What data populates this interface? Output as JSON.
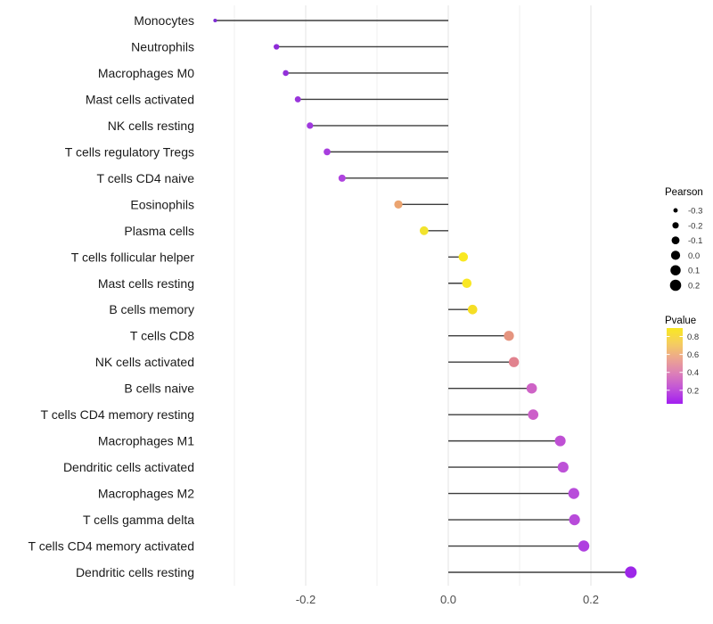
{
  "chart_data": {
    "type": "lollipop",
    "title": "",
    "xlabel": "",
    "ylabel": "",
    "x_ticks": [
      "-0.2",
      "0.0",
      "0.2"
    ],
    "x_tick_values": [
      -0.2,
      0.0,
      0.2
    ],
    "gridline_values": [
      -0.3,
      -0.2,
      -0.1,
      0.0,
      0.1,
      0.2
    ],
    "xlim": [
      -0.35,
      0.29
    ],
    "points": [
      {
        "label": "Monocytes",
        "pearson": -0.327,
        "pvalue_approx": 0.01,
        "color": "#7E2AD4"
      },
      {
        "label": "Neutrophils",
        "pearson": -0.241,
        "pvalue_approx": 0.08,
        "color": "#8E2BD8"
      },
      {
        "label": "Macrophages M0",
        "pearson": -0.228,
        "pvalue_approx": 0.1,
        "color": "#9330DA"
      },
      {
        "label": "Mast cells activated",
        "pearson": -0.211,
        "pvalue_approx": 0.12,
        "color": "#9935DB"
      },
      {
        "label": "NK cells resting",
        "pearson": -0.194,
        "pvalue_approx": 0.15,
        "color": "#A039DE"
      },
      {
        "label": "T cells regulatory  Tregs",
        "pearson": -0.17,
        "pvalue_approx": 0.18,
        "color": "#A73EDE"
      },
      {
        "label": "T cells CD4 naive",
        "pearson": -0.149,
        "pvalue_approx": 0.2,
        "color": "#AF44DF"
      },
      {
        "label": "Eosinophils",
        "pearson": -0.07,
        "pvalue_approx": 0.65,
        "color": "#EBA470"
      },
      {
        "label": "Plasma cells",
        "pearson": -0.034,
        "pvalue_approx": 0.8,
        "color": "#F2E32E"
      },
      {
        "label": "T cells follicular helper",
        "pearson": 0.021,
        "pvalue_approx": 0.85,
        "color": "#F9E821"
      },
      {
        "label": "Mast cells resting",
        "pearson": 0.026,
        "pvalue_approx": 0.85,
        "color": "#F9E724"
      },
      {
        "label": "B cells memory",
        "pearson": 0.034,
        "pvalue_approx": 0.8,
        "color": "#F5DE25"
      },
      {
        "label": "T cells CD8",
        "pearson": 0.085,
        "pvalue_approx": 0.55,
        "color": "#E5947F"
      },
      {
        "label": "NK cells activated",
        "pearson": 0.092,
        "pvalue_approx": 0.5,
        "color": "#E1828E"
      },
      {
        "label": "B cells naive",
        "pearson": 0.117,
        "pvalue_approx": 0.35,
        "color": "#CE63C6"
      },
      {
        "label": "T cells CD4 memory resting",
        "pearson": 0.119,
        "pvalue_approx": 0.35,
        "color": "#CC5FC9"
      },
      {
        "label": "Macrophages M1",
        "pearson": 0.157,
        "pvalue_approx": 0.3,
        "color": "#BF50D4"
      },
      {
        "label": "Dendritic cells activated",
        "pearson": 0.161,
        "pvalue_approx": 0.3,
        "color": "#BD52D7"
      },
      {
        "label": "Macrophages M2",
        "pearson": 0.176,
        "pvalue_approx": 0.25,
        "color": "#B84CDA"
      },
      {
        "label": "T cells gamma delta",
        "pearson": 0.177,
        "pvalue_approx": 0.25,
        "color": "#B84BDA"
      },
      {
        "label": "T cells CD4 memory activated",
        "pearson": 0.19,
        "pvalue_approx": 0.2,
        "color": "#AF40E0"
      },
      {
        "label": "Dendritic cells resting",
        "pearson": 0.256,
        "pvalue_approx": 0.05,
        "color": "#9D27E8"
      }
    ],
    "legend": {
      "size": {
        "title": "Pearson",
        "values": [
          "-0.3",
          "-0.2",
          "-0.1",
          "0.0",
          "0.1",
          "0.2"
        ],
        "numeric_values": [
          -0.3,
          -0.2,
          -0.1,
          0.0,
          0.1,
          0.2
        ],
        "dot_color": "#000000"
      },
      "color": {
        "title": "Pvalue",
        "labels": [
          "0.8",
          "0.6",
          "0.4",
          "0.2"
        ],
        "numeric_labels": [
          0.8,
          0.6,
          0.4,
          0.2
        ],
        "gradient_top_to_bottom": [
          "#F9E821",
          "#F5CE5E",
          "#ECA68F",
          "#DC7FB8",
          "#C153D8",
          "#A21EF0"
        ]
      }
    },
    "colors": {
      "stem": "#3D3D3D",
      "grid_major": "#E3E3E3",
      "grid_minor": "#EFEFEF",
      "axis_text": "#4D4D4D",
      "category_text": "#1A1A1A",
      "legend_text": "#333333",
      "background": "#FFFFFF"
    }
  }
}
